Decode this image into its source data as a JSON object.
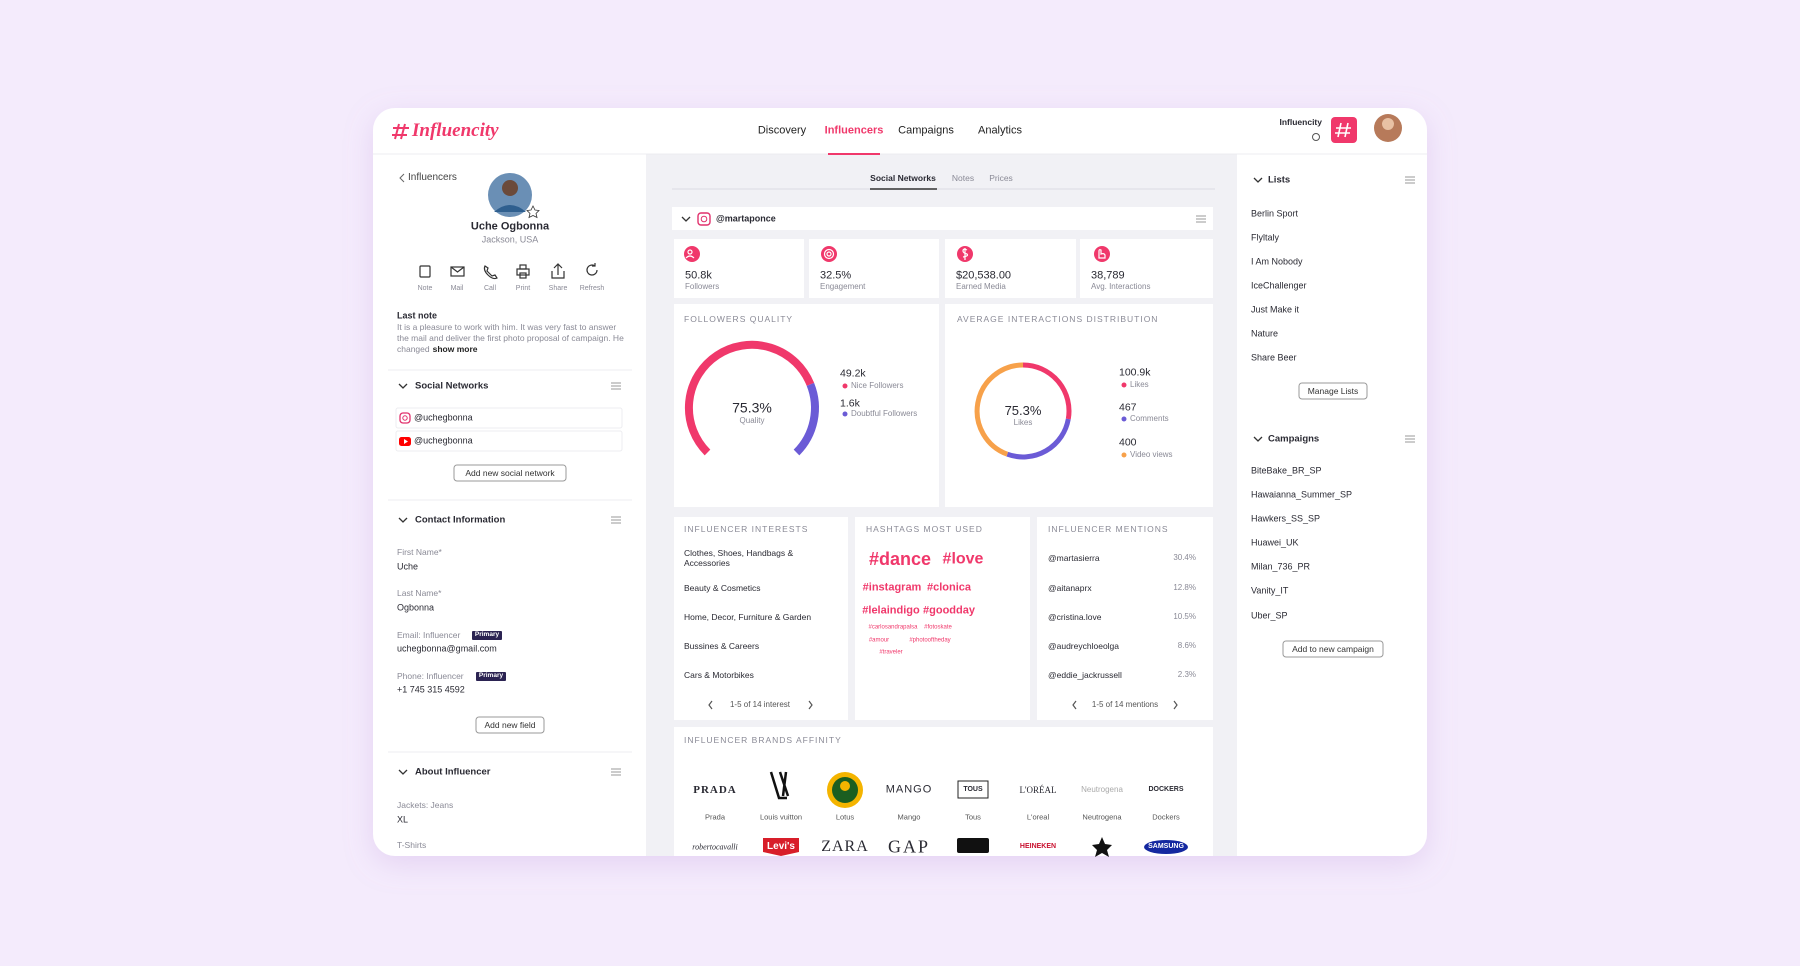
{
  "header": {
    "logo": "Influencity",
    "nav": [
      "Discovery",
      "Influencers",
      "Campaigns",
      "Analytics"
    ],
    "account": "Influencity"
  },
  "profile": {
    "back": "Influencers",
    "name": "Uche Ogbonna",
    "location": "Jackson, USA",
    "actions": [
      "Note",
      "Mail",
      "Call",
      "Print",
      "Share",
      "Refresh"
    ],
    "last_note_title": "Last note",
    "last_note": "It is a pleasure to work with him. It was very fast to answer the mail and deliver the first photo proposal of campaign. He changed",
    "show_more": "show more"
  },
  "social": {
    "title": "Social Networks",
    "accounts": [
      "@uchegbonna",
      "@uchegbonna"
    ],
    "button": "Add new social network"
  },
  "contact": {
    "title": "Contact Information",
    "fields": [
      {
        "label": "First Name*",
        "value": "Uche"
      },
      {
        "label": "Last Name*",
        "value": "Ogbonna"
      },
      {
        "label": "Email: Influencer",
        "badge": "Primary",
        "value": "uchegbonna@gmail.com"
      },
      {
        "label": "Phone: Influencer",
        "badge": "Primary",
        "value": "+1 745 315 4592"
      }
    ],
    "button": "Add new field"
  },
  "about": {
    "title": "About Influencer",
    "fields": [
      {
        "label": "Jackets: Jeans",
        "value": "XL"
      },
      {
        "label": "T-Shirts"
      }
    ]
  },
  "tabs": [
    "Social Networks",
    "Notes",
    "Prices"
  ],
  "account": "@martaponce",
  "stats": [
    {
      "value": "50.8k",
      "label": "Followers"
    },
    {
      "value": "32.5%",
      "label": "Engagement"
    },
    {
      "value": "$20,538.00",
      "label": "Earned Media"
    },
    {
      "value": "38,789",
      "label": "Avg. Interactions"
    }
  ],
  "followers_quality": {
    "title": "FOLLOWERS QUALITY",
    "value": "75.3%",
    "label": "Quality",
    "items": [
      {
        "value": "49.2k",
        "label": "Nice Followers"
      },
      {
        "value": "1.6k",
        "label": "Doubtful Followers"
      }
    ]
  },
  "interactions": {
    "title": "AVERAGE INTERACTIONS DISTRIBUTION",
    "value": "75.3%",
    "label": "Likes",
    "items": [
      {
        "value": "100.9k",
        "label": "Likes"
      },
      {
        "value": "467",
        "label": "Comments"
      },
      {
        "value": "400",
        "label": "Video views"
      }
    ]
  },
  "interests": {
    "title": "INFLUENCER INTERESTS",
    "items": [
      "Clothes, Shoes, Handbags & Accessories",
      "Beauty & Cosmetics",
      "Home, Decor, Furniture & Garden",
      "Bussines & Careers",
      "Cars & Motorbikes"
    ],
    "pager": "1-5 of 14 interest"
  },
  "hashtags": {
    "title": "HASHTAGS MOST USED",
    "items": [
      "#dance",
      "#love",
      "#instagram",
      "#clonica",
      "#lelaindigo",
      "#goodday",
      "#carlosandrapalsa",
      "#fotoskate",
      "#amour",
      "#photooftheday",
      "#traveler"
    ]
  },
  "mentions": {
    "title": "INFLUENCER MENTIONS",
    "items": [
      {
        "name": "@martasierra",
        "value": "30.4%"
      },
      {
        "name": "@aitanaprx",
        "value": "12.8%"
      },
      {
        "name": "@cristina.love",
        "value": "10.5%"
      },
      {
        "name": "@audreychloeolga",
        "value": "8.6%"
      },
      {
        "name": "@eddie_jackrussell",
        "value": "2.3%"
      }
    ],
    "pager": "1-5 of 14 mentions"
  },
  "brands": {
    "title": "INFLUENCER BRANDS AFFINITY",
    "items": [
      {
        "logo": "PRADA",
        "name": "Prada"
      },
      {
        "name": "Louis vuitton"
      },
      {
        "name": "Lotus"
      },
      {
        "logo": "MANGO",
        "name": "Mango"
      },
      {
        "logo": "TOUS",
        "name": "Tous"
      },
      {
        "logo": "L'ORÉAL",
        "name": "L'oreal"
      },
      {
        "logo": "Neutrogena",
        "name": "Neutrogena"
      },
      {
        "logo": "DOCKERS",
        "name": "Dockers"
      }
    ],
    "more_logos": [
      "robertocavalli",
      "Levi's",
      "ZARA",
      "GAP",
      "HEINEKEN",
      "SAMSUNG"
    ]
  },
  "lists": {
    "title": "Lists",
    "items": [
      "Berlin Sport",
      "Flyltaly",
      "I Am Nobody",
      "IceChallenger",
      "Just Make it",
      "Nature",
      "Share Beer"
    ],
    "button": "Manage Lists"
  },
  "campaigns": {
    "title": "Campaigns",
    "items": [
      "BiteBake_BR_SP",
      "Hawaianna_Summer_SP",
      "Hawkers_SS_SP",
      "Huawei_UK",
      "Milan_736_PR",
      "Vanity_IT",
      "Uber_SP"
    ],
    "button": "Add to new campaign"
  }
}
